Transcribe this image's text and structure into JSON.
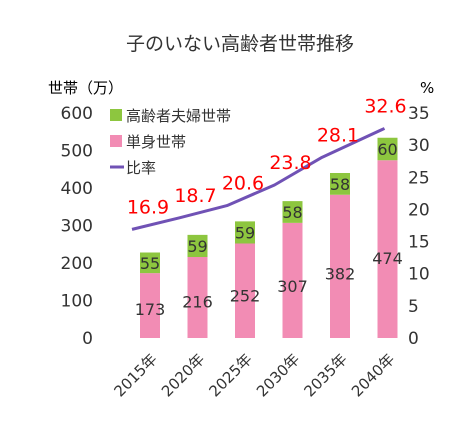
{
  "chart_data": {
    "type": "bar",
    "stacked": true,
    "title": "子のいない高齢者世帯推移",
    "ylabel_left": "世帯（万）",
    "ylabel_right": "%",
    "categories": [
      "2015年",
      "2020年",
      "2025年",
      "2030年",
      "2035年",
      "2040年"
    ],
    "ylim_left": [
      0,
      600
    ],
    "yticks_left": [
      "0",
      "100",
      "200",
      "300",
      "400",
      "500",
      "600"
    ],
    "ylim_right": [
      0,
      35
    ],
    "yticks_right": [
      "0",
      "5",
      "10",
      "15",
      "20",
      "25",
      "30",
      "35"
    ],
    "grid": false,
    "legend_position": "top-left",
    "series": [
      {
        "name": "単身世帯",
        "kind": "bar",
        "values": [
          173,
          216,
          252,
          307,
          382,
          474
        ],
        "color": "#f28cb4"
      },
      {
        "name": "高齢者夫婦世帯",
        "kind": "bar",
        "values": [
          55,
          59,
          59,
          58,
          58,
          60
        ],
        "color": "#8dc63f"
      },
      {
        "name": "比率",
        "kind": "line",
        "axis": "right",
        "values": [
          16.9,
          18.7,
          20.6,
          23.8,
          28.1,
          32.6
        ],
        "color": "#7052b5",
        "label_color": "#ff0000"
      }
    ],
    "legend_order": [
      "高齢者夫婦世帯",
      "単身世帯",
      "比率"
    ]
  }
}
